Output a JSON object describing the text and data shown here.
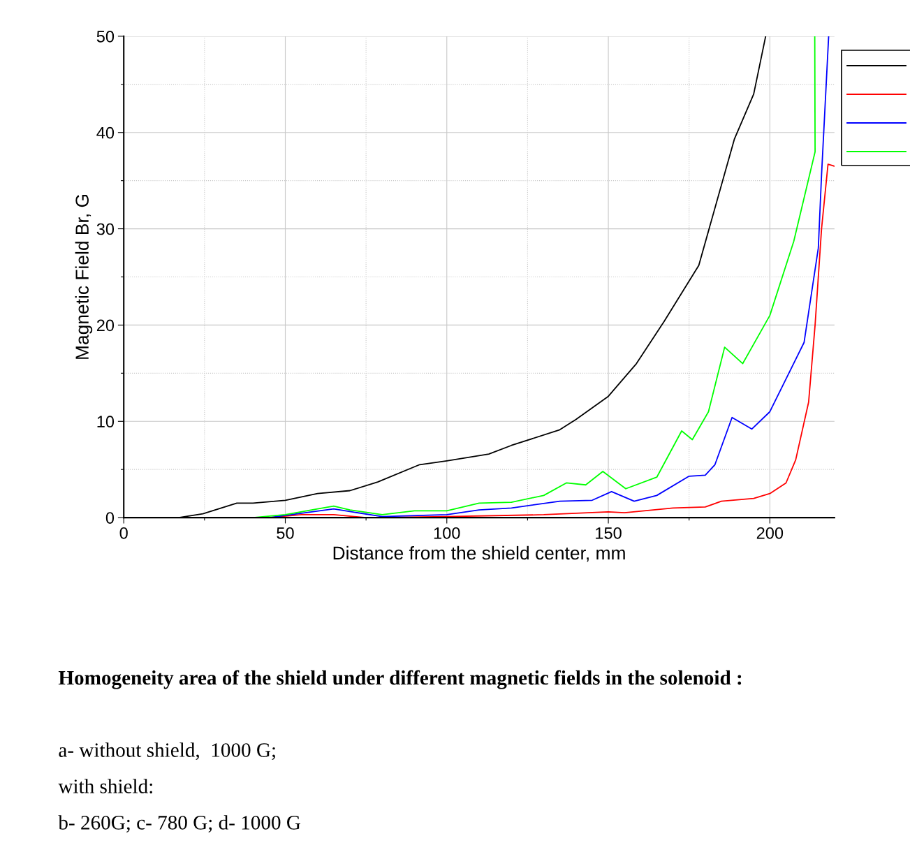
{
  "chart_data": {
    "type": "line",
    "xlabel": "Distance from the shield center, mm",
    "ylabel": "Magnetic Field Br, G",
    "xlim": [
      0,
      220
    ],
    "ylim": [
      0,
      50
    ],
    "xticks": [
      0,
      {
        "value": 25,
        "label": null
      },
      50,
      {
        "value": 75,
        "label": null
      },
      100,
      {
        "value": 125,
        "label": null
      },
      150,
      {
        "value": 175,
        "label": null
      },
      200
    ],
    "yticks": [
      0,
      {
        "value": 5,
        "label": null
      },
      10,
      {
        "value": 15,
        "label": null
      },
      20,
      {
        "value": 25,
        "label": null
      },
      30,
      {
        "value": 35,
        "label": null
      },
      40,
      {
        "value": 45,
        "label": null
      },
      50
    ],
    "grid": true,
    "line_style": "solid",
    "marker": "none",
    "series": [
      {
        "color": "#000000",
        "x": [
          0,
          17,
          24.5,
          35,
          40,
          50,
          60,
          70,
          78.6,
          91.6,
          100,
          113,
          120,
          134.8,
          140,
          150,
          158.7,
          167.3,
          178,
          189,
          195,
          198.7
        ],
        "values": [
          0,
          0,
          0.4,
          1.5,
          1.5,
          1.8,
          2.5,
          2.8,
          3.7,
          5.5,
          5.9,
          6.6,
          7.5,
          9.1,
          10.2,
          12.6,
          16.0,
          20.4,
          26.2,
          39.3,
          44,
          50
        ]
      },
      {
        "color": "#ff0000",
        "x": [
          0,
          45,
          55,
          65,
          75,
          100,
          130,
          150,
          155,
          170,
          180,
          185,
          195,
          200,
          205,
          208,
          212,
          214,
          216,
          218,
          220
        ],
        "values": [
          0,
          0,
          0.3,
          0.3,
          0,
          0.1,
          0.3,
          0.6,
          0.5,
          1.0,
          1.1,
          1.7,
          2.0,
          2.5,
          3.6,
          6,
          12,
          20,
          30,
          36.7,
          36.5
        ]
      },
      {
        "color": "#0000ff",
        "x": [
          0,
          45,
          65,
          80,
          100,
          110,
          120,
          135,
          145,
          151,
          158,
          165,
          175,
          180,
          183,
          188.3,
          194.4,
          200,
          210.6,
          215,
          216,
          218.2
        ],
        "values": [
          0,
          0,
          0.9,
          0.1,
          0.3,
          0.8,
          1.0,
          1.7,
          1.8,
          2.7,
          1.7,
          2.3,
          4.3,
          4.4,
          5.5,
          10.4,
          9.2,
          11,
          18.2,
          28,
          35.6,
          50
        ]
      },
      {
        "color": "#00ff00",
        "x": [
          0,
          40,
          50,
          60,
          65,
          70,
          80,
          90,
          100,
          110,
          120,
          130,
          137,
          143,
          148.3,
          155.4,
          165,
          172.7,
          176,
          181,
          186,
          191.6,
          200,
          207.4,
          214,
          213.9
        ],
        "values": [
          0,
          0,
          0.3,
          0.9,
          1.2,
          0.8,
          0.3,
          0.7,
          0.7,
          1.5,
          1.6,
          2.3,
          3.6,
          3.4,
          4.8,
          3.0,
          4.2,
          9.0,
          8.1,
          11,
          17.7,
          16.0,
          21,
          28.7,
          38,
          50
        ]
      }
    ],
    "annotations": [
      "Homogeneity area of the shield under different magnetic fields in the solenoid :",
      "a- without shield,  1000 G;",
      "with shield:",
      "b- 260G; c- 780 G; d- 1000 G"
    ]
  }
}
